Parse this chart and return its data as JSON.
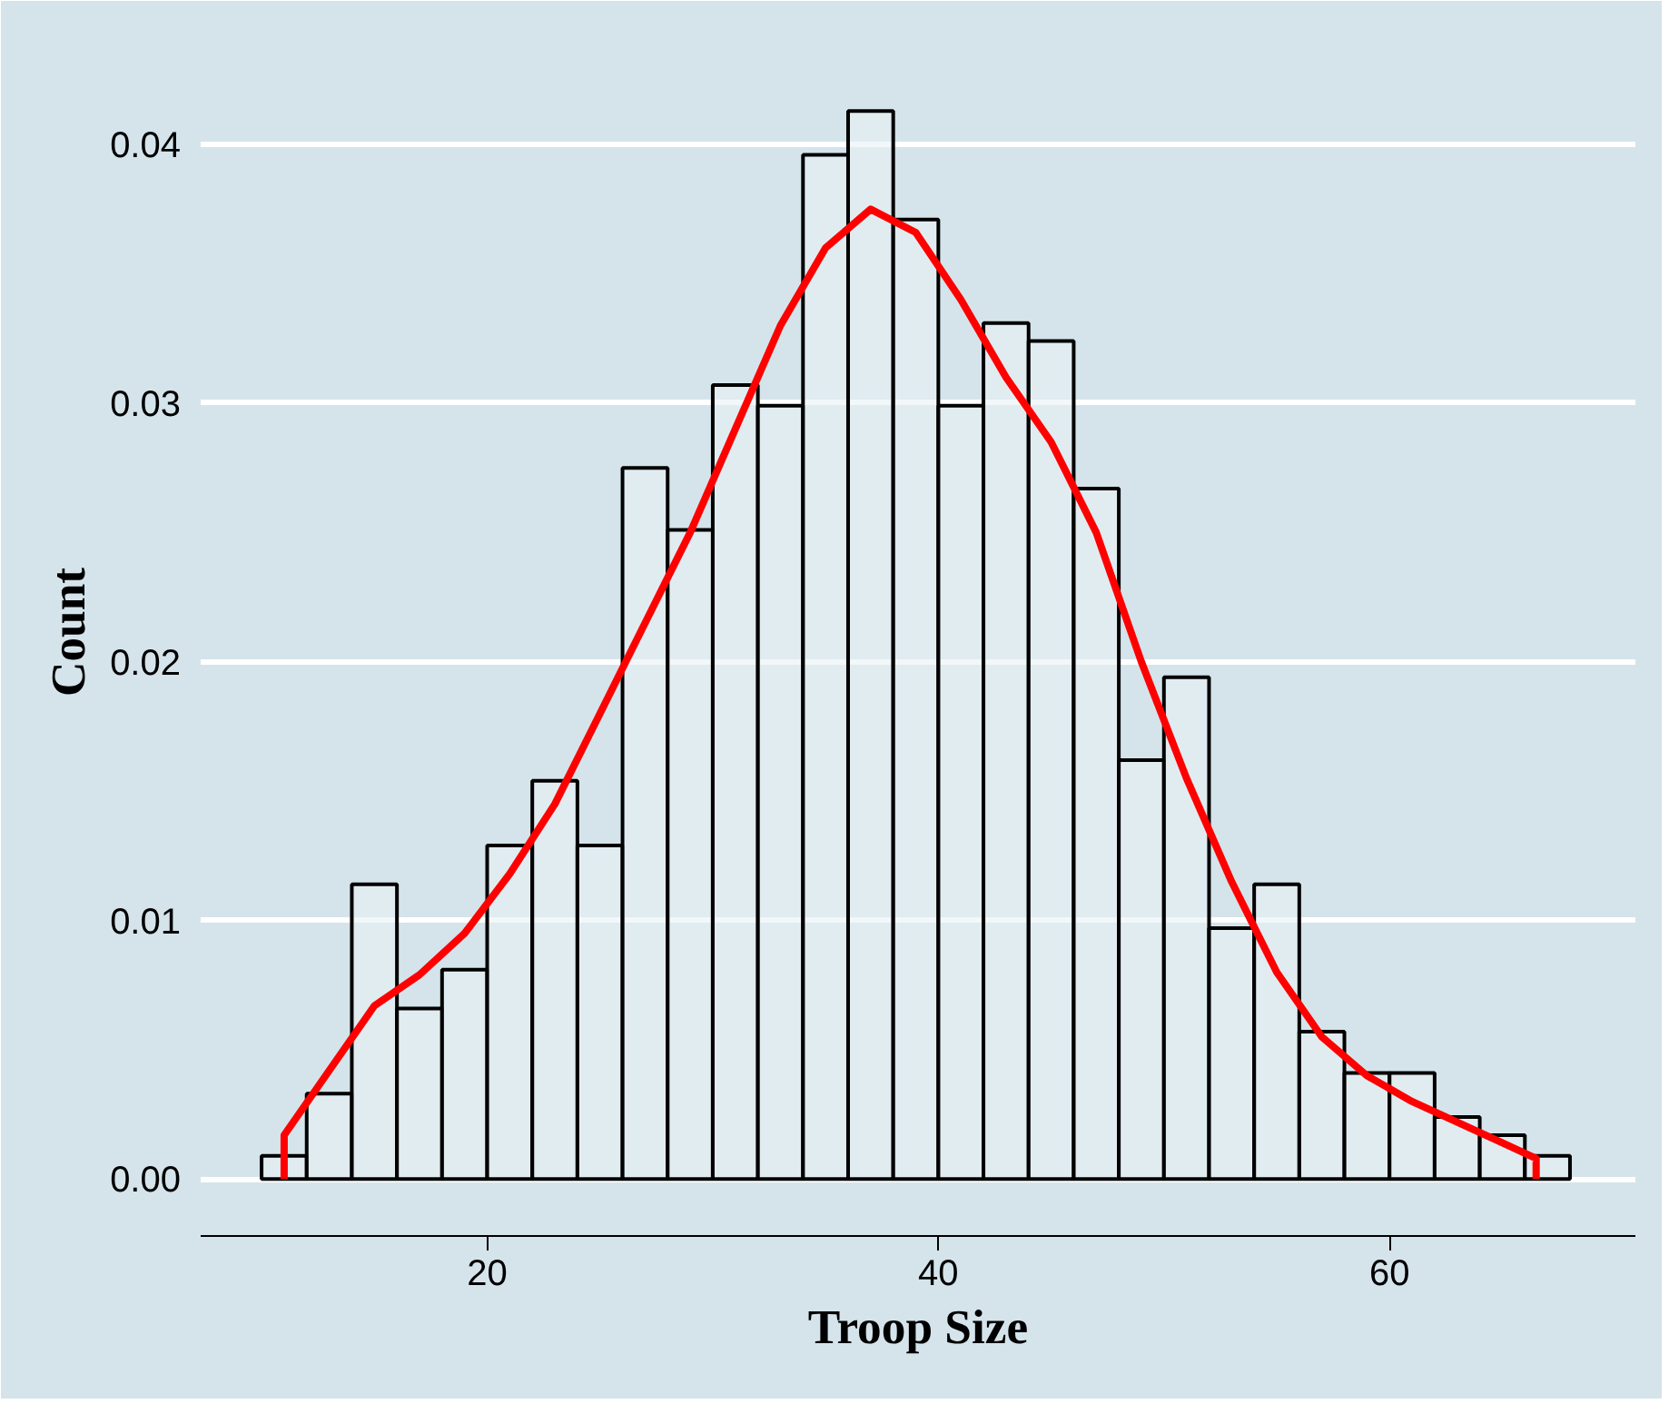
{
  "chart_data": {
    "type": "histogram",
    "xlabel": "Troop Size",
    "ylabel": "Count",
    "bins": [
      10,
      12,
      14,
      16,
      18,
      20,
      22,
      24,
      26,
      28,
      30,
      32,
      34,
      36,
      38,
      40,
      42,
      44,
      46,
      48,
      50,
      52,
      54,
      56,
      58,
      60,
      62,
      64,
      66,
      68
    ],
    "values": [
      0.0009,
      0.0033,
      0.0114,
      0.0066,
      0.0081,
      0.0129,
      0.0154,
      0.0129,
      0.0275,
      0.0251,
      0.0307,
      0.0299,
      0.0396,
      0.0413,
      0.0371,
      0.0299,
      0.0331,
      0.0324,
      0.0267,
      0.0162,
      0.0194,
      0.0097,
      0.0114,
      0.0057,
      0.0041,
      0.0041,
      0.0024,
      0.0017,
      0.0009
    ],
    "color": "#eaf2f5",
    "series": [
      {
        "type": "line",
        "color": "#ff0000",
        "x": [
          11,
          11,
          13,
          15,
          17,
          19,
          21,
          23,
          25,
          27,
          29,
          31,
          33,
          35,
          37,
          39,
          41,
          43,
          45,
          47,
          49,
          51,
          53,
          55,
          57,
          59,
          61,
          63,
          65,
          66.5,
          66.5
        ],
        "values": [
          0,
          0.0017,
          0.0042,
          0.0067,
          0.0079,
          0.0095,
          0.0118,
          0.0145,
          0.018,
          0.0215,
          0.025,
          0.029,
          0.033,
          0.036,
          0.0375,
          0.0366,
          0.034,
          0.031,
          0.0285,
          0.025,
          0.02,
          0.0155,
          0.0115,
          0.008,
          0.0055,
          0.004,
          0.003,
          0.0022,
          0.0014,
          0.0008,
          0
        ]
      }
    ],
    "xlim": [
      7.3,
      70.9
    ],
    "ylim": [
      -0.0022,
      0.0445
    ],
    "xticks": [
      20,
      40,
      60
    ],
    "yticks": [
      {
        "value": 0,
        "label": "0.00"
      },
      {
        "value": 0.01,
        "label": "0.01"
      },
      {
        "value": 0.02,
        "label": "0.02"
      },
      {
        "value": 0.03,
        "label": "0.03"
      },
      {
        "value": 0.04,
        "label": "0.04"
      }
    ],
    "grid": "y"
  }
}
